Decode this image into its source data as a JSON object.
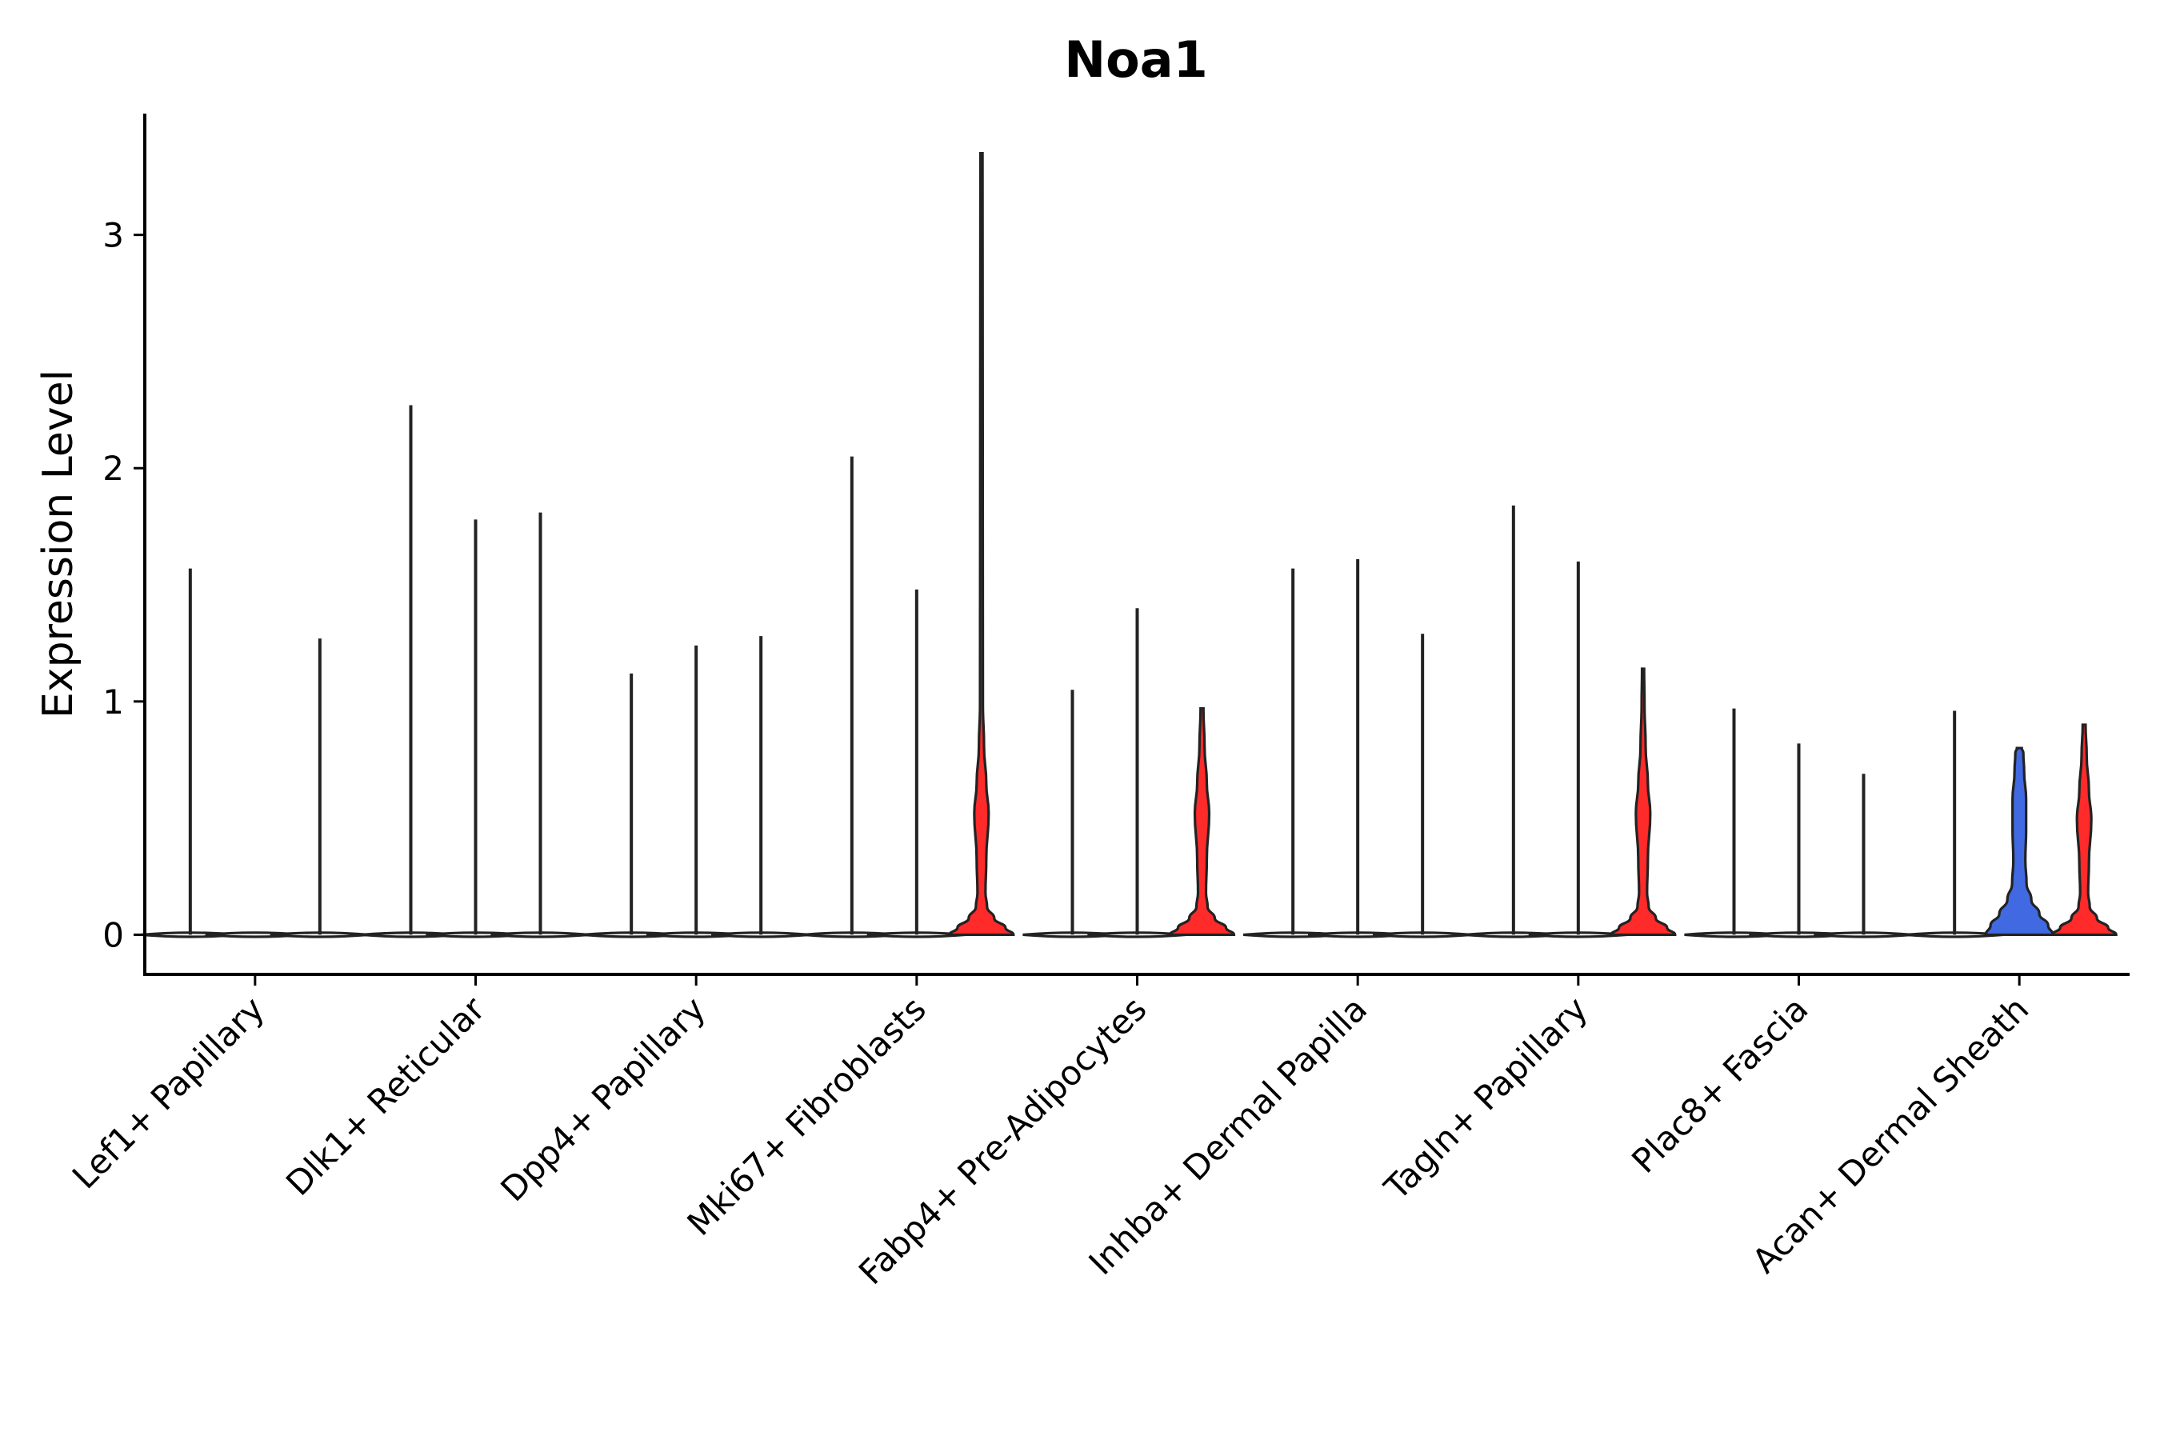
{
  "chart_data": {
    "type": "violin",
    "title": "Noa1",
    "xlabel": "",
    "ylabel": "Expression Level",
    "ylim": [
      -0.17,
      3.52
    ],
    "yticks": [
      0,
      1,
      2,
      3
    ],
    "ytick_labels": [
      "0",
      "1",
      "2",
      "3"
    ],
    "categories": [
      "Lef1+ Papillary",
      "Dlk1+ Reticular",
      "Dpp4+ Papillary",
      "Mki67+ Fibroblasts",
      "Fabp4+ Pre-Adipocytes",
      "Inhba+ Dermal Papilla",
      "Tagln+ Papillary",
      "Plac8+ Fascia",
      "Acan+ Dermal Sheath"
    ],
    "colors": {
      "flat": "#ffffff",
      "blue": "#4169e1",
      "red": "#ff2a2a",
      "outline": "#222222"
    },
    "groups": [
      {
        "category": "Lef1+ Papillary",
        "violins": [
          {
            "max": 1.57,
            "shape": "flat"
          },
          {
            "max": 0.0,
            "shape": "flat"
          },
          {
            "max": 1.27,
            "shape": "flat"
          }
        ]
      },
      {
        "category": "Dlk1+ Reticular",
        "violins": [
          {
            "max": 2.27,
            "shape": "flat"
          },
          {
            "max": 1.78,
            "shape": "flat"
          },
          {
            "max": 1.81,
            "shape": "flat"
          }
        ]
      },
      {
        "category": "Dpp4+ Papillary",
        "violins": [
          {
            "max": 1.12,
            "shape": "flat"
          },
          {
            "max": 1.24,
            "shape": "flat"
          },
          {
            "max": 1.28,
            "shape": "flat"
          }
        ]
      },
      {
        "category": "Mki67+ Fibroblasts",
        "violins": [
          {
            "max": 2.05,
            "shape": "flat"
          },
          {
            "max": 1.48,
            "shape": "flat"
          },
          {
            "max": 3.35,
            "shape": "red-bimodal",
            "color": "red"
          }
        ]
      },
      {
        "category": "Fabp4+ Pre-Adipocytes",
        "violins": [
          {
            "max": 1.05,
            "shape": "flat"
          },
          {
            "max": 1.4,
            "shape": "flat"
          },
          {
            "max": 0.97,
            "shape": "red-bimodal",
            "color": "red"
          }
        ]
      },
      {
        "category": "Inhba+ Dermal Papilla",
        "violins": [
          {
            "max": 1.57,
            "shape": "flat"
          },
          {
            "max": 1.61,
            "shape": "flat"
          },
          {
            "max": 1.29,
            "shape": "flat"
          }
        ]
      },
      {
        "category": "Tagln+ Papillary",
        "violins": [
          {
            "max": 1.84,
            "shape": "flat"
          },
          {
            "max": 1.6,
            "shape": "flat"
          },
          {
            "max": 1.14,
            "shape": "red-bimodal",
            "color": "red"
          }
        ]
      },
      {
        "category": "Plac8+ Fascia",
        "violins": [
          {
            "max": 0.97,
            "shape": "flat"
          },
          {
            "max": 0.82,
            "shape": "flat"
          },
          {
            "max": 0.69,
            "shape": "flat"
          }
        ]
      },
      {
        "category": "Acan+ Dermal Sheath",
        "violins": [
          {
            "max": 0.96,
            "shape": "flat"
          },
          {
            "max": 0.8,
            "shape": "blue-tall",
            "color": "blue"
          },
          {
            "max": 0.9,
            "shape": "red-bimodal",
            "color": "red"
          }
        ]
      }
    ]
  }
}
